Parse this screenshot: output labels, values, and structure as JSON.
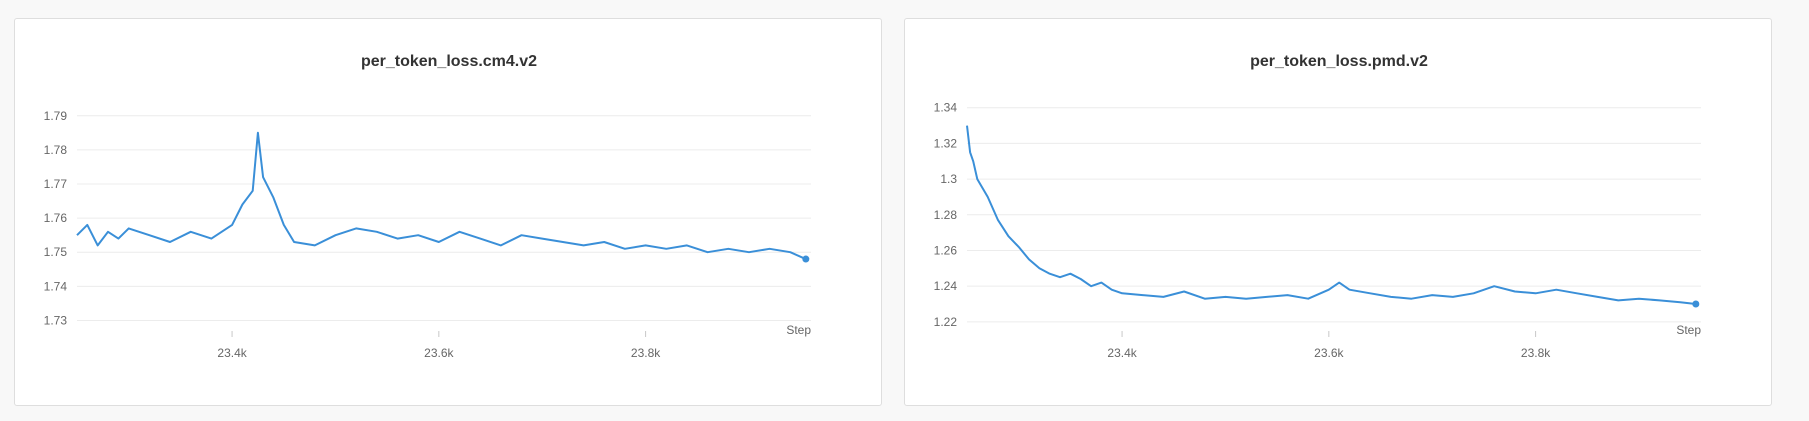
{
  "theme": {
    "line_color": "#3a8fd8",
    "grid_color": "#ececec",
    "panel_border": "#dedede",
    "background": "#f8f8f8"
  },
  "chart_data": [
    {
      "type": "line",
      "title": "per_token_loss.cm4.v2",
      "xlabel": "Step",
      "ylabel": "",
      "xlim": [
        23250,
        23960
      ],
      "ylim": [
        1.7275,
        1.7955
      ],
      "x_ticks": [
        23400,
        23600,
        23800
      ],
      "x_tick_labels": [
        "23.4k",
        "23.6k",
        "23.8k"
      ],
      "y_ticks": [
        1.73,
        1.74,
        1.75,
        1.76,
        1.77,
        1.78,
        1.79
      ],
      "y_tick_labels": [
        "1.73",
        "1.74",
        "1.75",
        "1.76",
        "1.77",
        "1.78",
        "1.79"
      ],
      "grid": true,
      "series": [
        {
          "x": [
            23250,
            23260,
            23270,
            23280,
            23290,
            23300,
            23320,
            23340,
            23360,
            23380,
            23400,
            23410,
            23420,
            23425,
            23430,
            23440,
            23450,
            23460,
            23480,
            23500,
            23520,
            23540,
            23560,
            23580,
            23600,
            23620,
            23640,
            23660,
            23680,
            23700,
            23720,
            23740,
            23760,
            23780,
            23800,
            23820,
            23840,
            23860,
            23880,
            23900,
            23920,
            23940,
            23955
          ],
          "y": [
            1.755,
            1.758,
            1.752,
            1.756,
            1.754,
            1.757,
            1.755,
            1.753,
            1.756,
            1.754,
            1.758,
            1.764,
            1.768,
            1.785,
            1.772,
            1.766,
            1.758,
            1.753,
            1.752,
            1.755,
            1.757,
            1.756,
            1.754,
            1.755,
            1.753,
            1.756,
            1.754,
            1.752,
            1.755,
            1.754,
            1.753,
            1.752,
            1.753,
            1.751,
            1.752,
            1.751,
            1.752,
            1.75,
            1.751,
            1.75,
            1.751,
            1.75,
            1.748
          ]
        }
      ]
    },
    {
      "type": "line",
      "title": "per_token_loss.pmd.v2",
      "xlabel": "Step",
      "ylabel": "",
      "xlim": [
        23250,
        23960
      ],
      "ylim": [
        1.216,
        1.346
      ],
      "x_ticks": [
        23400,
        23600,
        23800
      ],
      "x_tick_labels": [
        "23.4k",
        "23.6k",
        "23.8k"
      ],
      "y_ticks": [
        1.22,
        1.24,
        1.26,
        1.28,
        1.3,
        1.32,
        1.34
      ],
      "y_tick_labels": [
        "1.22",
        "1.24",
        "1.26",
        "1.28",
        "1.3",
        "1.32",
        "1.34"
      ],
      "grid": true,
      "series": [
        {
          "x": [
            23250,
            23253,
            23256,
            23260,
            23265,
            23270,
            23280,
            23290,
            23300,
            23310,
            23320,
            23330,
            23340,
            23350,
            23360,
            23370,
            23380,
            23390,
            23400,
            23420,
            23440,
            23460,
            23480,
            23500,
            23520,
            23540,
            23560,
            23580,
            23600,
            23610,
            23620,
            23640,
            23660,
            23680,
            23700,
            23720,
            23740,
            23760,
            23780,
            23800,
            23820,
            23840,
            23860,
            23880,
            23900,
            23920,
            23940,
            23955
          ],
          "y": [
            1.33,
            1.315,
            1.31,
            1.3,
            1.295,
            1.29,
            1.277,
            1.268,
            1.262,
            1.255,
            1.25,
            1.247,
            1.245,
            1.247,
            1.244,
            1.24,
            1.242,
            1.238,
            1.236,
            1.235,
            1.234,
            1.237,
            1.233,
            1.234,
            1.233,
            1.234,
            1.235,
            1.233,
            1.238,
            1.242,
            1.238,
            1.236,
            1.234,
            1.233,
            1.235,
            1.234,
            1.236,
            1.24,
            1.237,
            1.236,
            1.238,
            1.236,
            1.234,
            1.232,
            1.233,
            1.232,
            1.231,
            1.23
          ]
        }
      ]
    }
  ]
}
